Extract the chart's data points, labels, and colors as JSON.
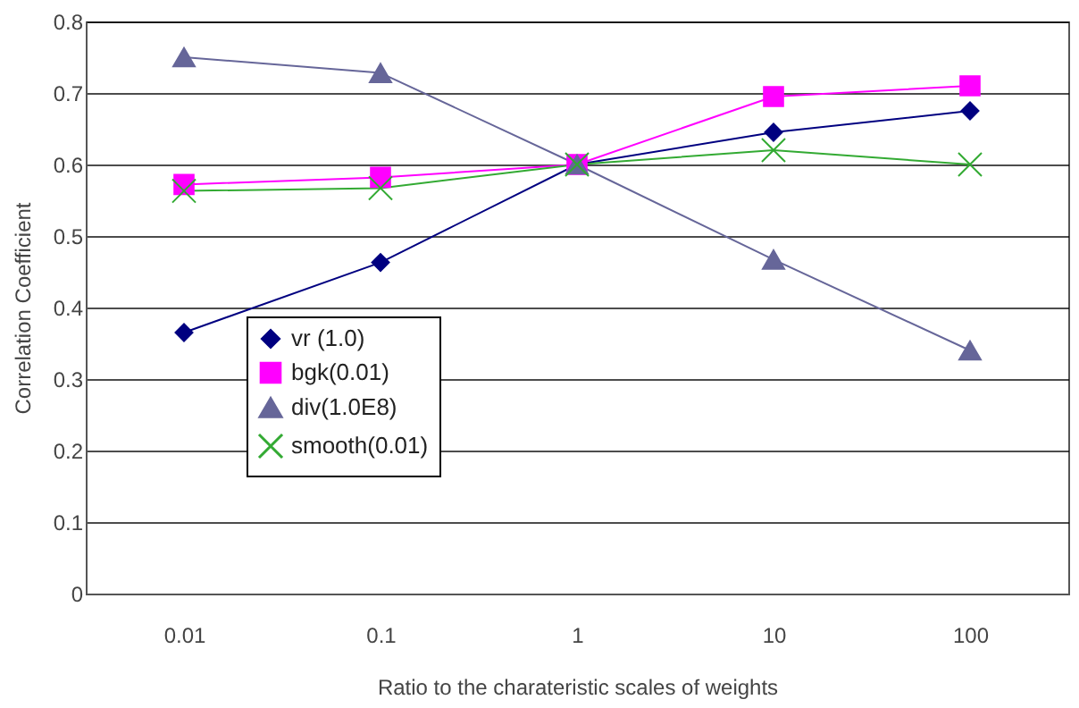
{
  "chart_data": {
    "type": "line",
    "xlabel": "Ratio to the charateristic scales of weights",
    "ylabel": "Correlation Coefficient",
    "categories": [
      "0.01",
      "0.1",
      "1",
      "10",
      "100"
    ],
    "series": [
      {
        "name": "vr (1.0)",
        "color": "#000080",
        "marker": "diamond",
        "values": [
          0.365,
          0.463,
          0.6,
          0.645,
          0.675
        ]
      },
      {
        "name": "bgk(0.01)",
        "color": "#ff00ff",
        "marker": "square",
        "values": [
          0.572,
          0.582,
          0.6,
          0.695,
          0.71
        ]
      },
      {
        "name": "div(1.0E8)",
        "color": "#666699",
        "marker": "triangle",
        "values": [
          0.75,
          0.728,
          0.6,
          0.467,
          0.34
        ]
      },
      {
        "name": "smooth(0.01)",
        "color": "#33aa33",
        "marker": "cross",
        "values": [
          0.563,
          0.567,
          0.6,
          0.62,
          0.6
        ]
      }
    ],
    "ylim": [
      0,
      0.8
    ],
    "yticks": [
      0,
      0.1,
      0.2,
      0.3,
      0.4,
      0.5,
      0.6,
      0.7,
      0.8
    ],
    "grid": "y",
    "legend": "bottom left",
    "line_style": "solid"
  }
}
